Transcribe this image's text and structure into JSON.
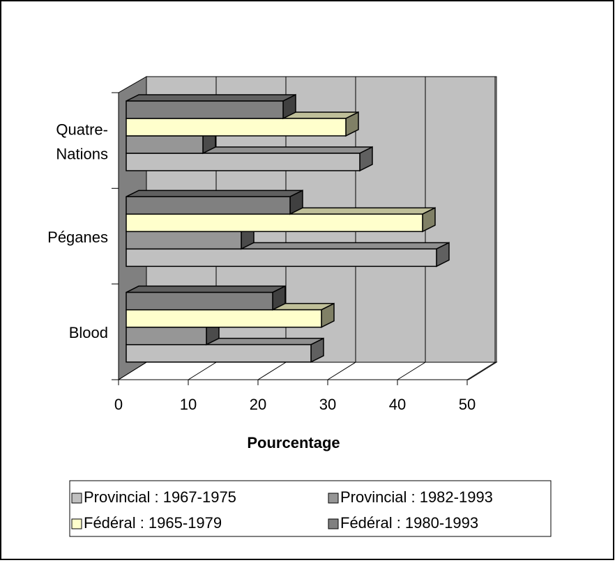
{
  "chart_data": {
    "type": "bar3d_horizontal",
    "xlabel": "Pourcentage",
    "categories": [
      "Blood",
      "Péganes",
      "Quatre-Nations"
    ],
    "series": [
      {
        "name": "Provincial : 1967-1975",
        "color": "#c0c0c0",
        "values": [
          26.5,
          44.5,
          33.5
        ]
      },
      {
        "name": "Provincial : 1982-1993",
        "color": "#969696",
        "values": [
          11.5,
          16.5,
          11
        ]
      },
      {
        "name": "Fédéral : 1965-1979",
        "color": "#ffffcc",
        "values": [
          28,
          42.5,
          31.5
        ]
      },
      {
        "name": "Fédéral : 1980-1993",
        "color": "#808080",
        "values": [
          21,
          23.5,
          22.5
        ]
      }
    ],
    "xlim": [
      0,
      50
    ],
    "xticks": [
      0,
      10,
      20,
      30,
      40,
      50
    ],
    "grid": true,
    "legend": "bottom"
  }
}
